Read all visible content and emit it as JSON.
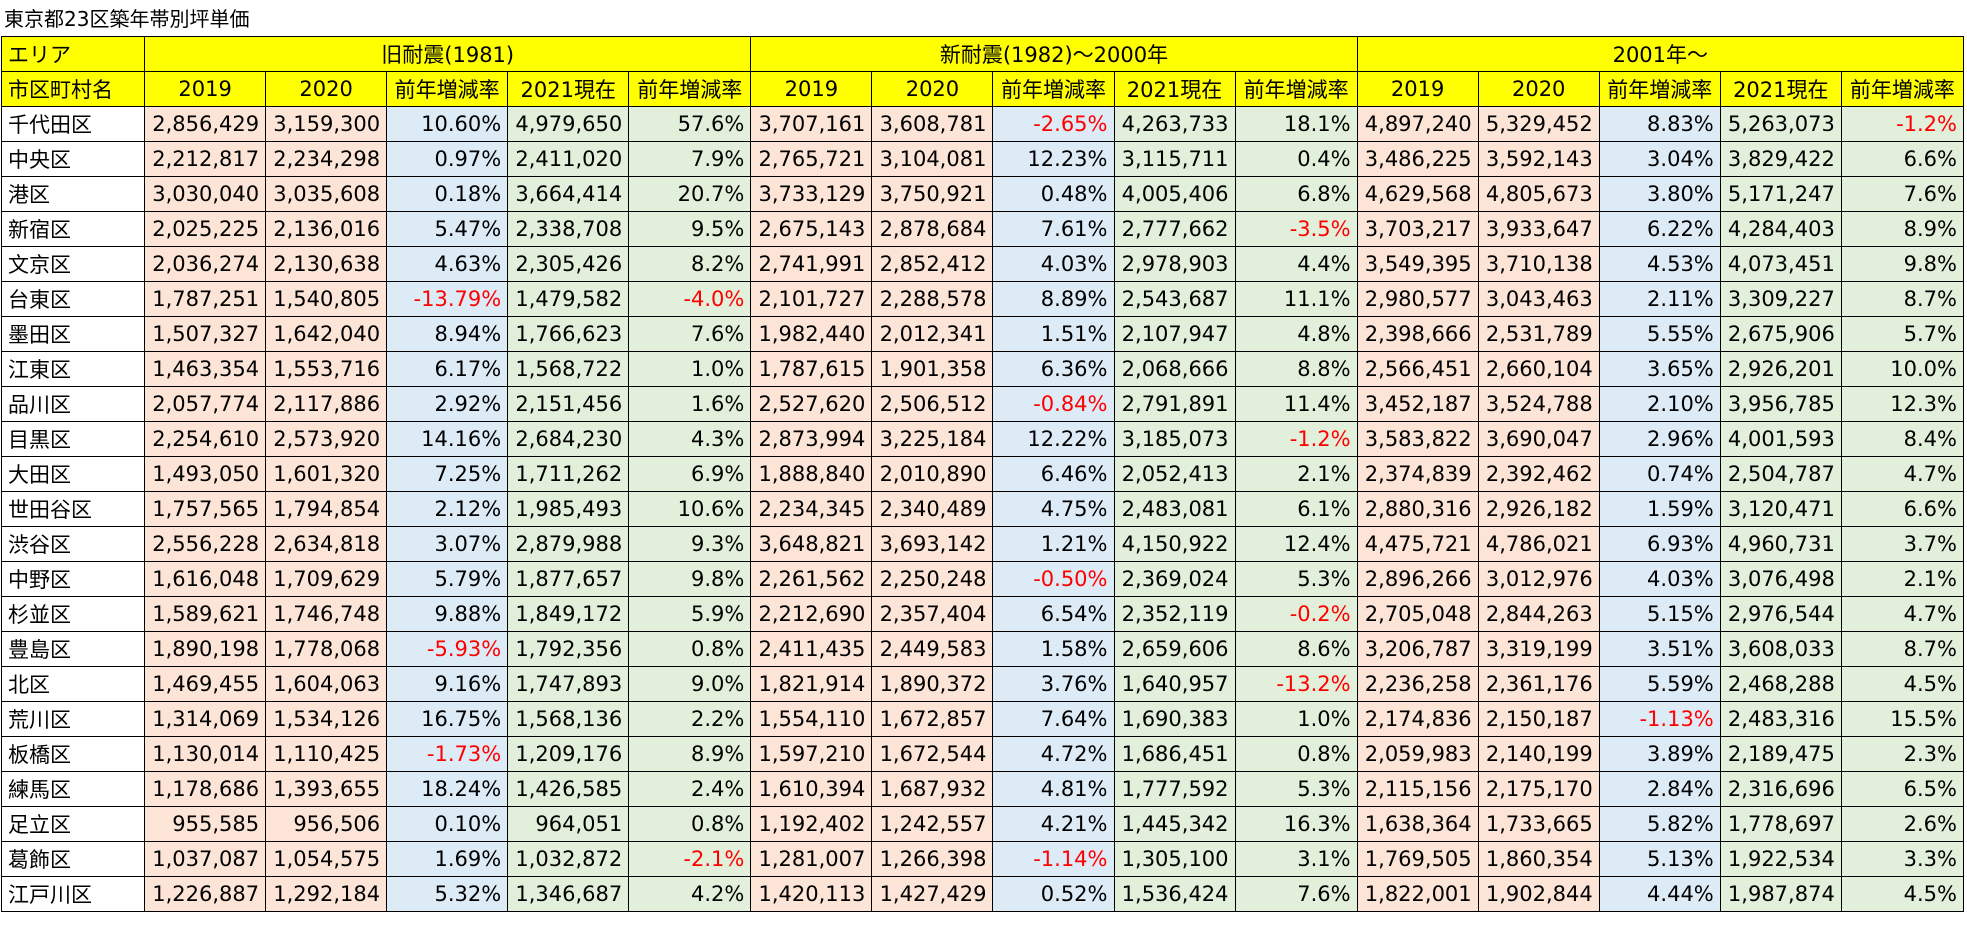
{
  "title": "東京都23区築年帯別坪単価",
  "header": {
    "area_label": "エリア",
    "groups": [
      "旧耐震(1981)",
      "新耐震(1982)～2000年",
      "2001年～"
    ],
    "ward_label": "市区町村名",
    "columns": [
      "2019",
      "2020",
      "前年増減率",
      "2021現在",
      "前年増減率"
    ]
  },
  "rows": [
    {
      "ward": "千代田区",
      "cells": [
        "2,856,429",
        "3,159,300",
        "10.60%",
        "4,979,650",
        "57.6%",
        "3,707,161",
        "3,608,781",
        "-2.65%",
        "4,263,733",
        "18.1%",
        "4,897,240",
        "5,329,452",
        "8.83%",
        "5,263,073",
        "-1.2%"
      ]
    },
    {
      "ward": "中央区",
      "cells": [
        "2,212,817",
        "2,234,298",
        "0.97%",
        "2,411,020",
        "7.9%",
        "2,765,721",
        "3,104,081",
        "12.23%",
        "3,115,711",
        "0.4%",
        "3,486,225",
        "3,592,143",
        "3.04%",
        "3,829,422",
        "6.6%"
      ]
    },
    {
      "ward": "港区",
      "cells": [
        "3,030,040",
        "3,035,608",
        "0.18%",
        "3,664,414",
        "20.7%",
        "3,733,129",
        "3,750,921",
        "0.48%",
        "4,005,406",
        "6.8%",
        "4,629,568",
        "4,805,673",
        "3.80%",
        "5,171,247",
        "7.6%"
      ]
    },
    {
      "ward": "新宿区",
      "cells": [
        "2,025,225",
        "2,136,016",
        "5.47%",
        "2,338,708",
        "9.5%",
        "2,675,143",
        "2,878,684",
        "7.61%",
        "2,777,662",
        "-3.5%",
        "3,703,217",
        "3,933,647",
        "6.22%",
        "4,284,403",
        "8.9%"
      ]
    },
    {
      "ward": "文京区",
      "cells": [
        "2,036,274",
        "2,130,638",
        "4.63%",
        "2,305,426",
        "8.2%",
        "2,741,991",
        "2,852,412",
        "4.03%",
        "2,978,903",
        "4.4%",
        "3,549,395",
        "3,710,138",
        "4.53%",
        "4,073,451",
        "9.8%"
      ]
    },
    {
      "ward": "台東区",
      "cells": [
        "1,787,251",
        "1,540,805",
        "-13.79%",
        "1,479,582",
        "-4.0%",
        "2,101,727",
        "2,288,578",
        "8.89%",
        "2,543,687",
        "11.1%",
        "2,980,577",
        "3,043,463",
        "2.11%",
        "3,309,227",
        "8.7%"
      ]
    },
    {
      "ward": "墨田区",
      "cells": [
        "1,507,327",
        "1,642,040",
        "8.94%",
        "1,766,623",
        "7.6%",
        "1,982,440",
        "2,012,341",
        "1.51%",
        "2,107,947",
        "4.8%",
        "2,398,666",
        "2,531,789",
        "5.55%",
        "2,675,906",
        "5.7%"
      ]
    },
    {
      "ward": "江東区",
      "cells": [
        "1,463,354",
        "1,553,716",
        "6.17%",
        "1,568,722",
        "1.0%",
        "1,787,615",
        "1,901,358",
        "6.36%",
        "2,068,666",
        "8.8%",
        "2,566,451",
        "2,660,104",
        "3.65%",
        "2,926,201",
        "10.0%"
      ]
    },
    {
      "ward": "品川区",
      "cells": [
        "2,057,774",
        "2,117,886",
        "2.92%",
        "2,151,456",
        "1.6%",
        "2,527,620",
        "2,506,512",
        "-0.84%",
        "2,791,891",
        "11.4%",
        "3,452,187",
        "3,524,788",
        "2.10%",
        "3,956,785",
        "12.3%"
      ]
    },
    {
      "ward": "目黒区",
      "cells": [
        "2,254,610",
        "2,573,920",
        "14.16%",
        "2,684,230",
        "4.3%",
        "2,873,994",
        "3,225,184",
        "12.22%",
        "3,185,073",
        "-1.2%",
        "3,583,822",
        "3,690,047",
        "2.96%",
        "4,001,593",
        "8.4%"
      ]
    },
    {
      "ward": "大田区",
      "cells": [
        "1,493,050",
        "1,601,320",
        "7.25%",
        "1,711,262",
        "6.9%",
        "1,888,840",
        "2,010,890",
        "6.46%",
        "2,052,413",
        "2.1%",
        "2,374,839",
        "2,392,462",
        "0.74%",
        "2,504,787",
        "4.7%"
      ]
    },
    {
      "ward": "世田谷区",
      "cells": [
        "1,757,565",
        "1,794,854",
        "2.12%",
        "1,985,493",
        "10.6%",
        "2,234,345",
        "2,340,489",
        "4.75%",
        "2,483,081",
        "6.1%",
        "2,880,316",
        "2,926,182",
        "1.59%",
        "3,120,471",
        "6.6%"
      ]
    },
    {
      "ward": "渋谷区",
      "cells": [
        "2,556,228",
        "2,634,818",
        "3.07%",
        "2,879,988",
        "9.3%",
        "3,648,821",
        "3,693,142",
        "1.21%",
        "4,150,922",
        "12.4%",
        "4,475,721",
        "4,786,021",
        "6.93%",
        "4,960,731",
        "3.7%"
      ]
    },
    {
      "ward": "中野区",
      "cells": [
        "1,616,048",
        "1,709,629",
        "5.79%",
        "1,877,657",
        "9.8%",
        "2,261,562",
        "2,250,248",
        "-0.50%",
        "2,369,024",
        "5.3%",
        "2,896,266",
        "3,012,976",
        "4.03%",
        "3,076,498",
        "2.1%"
      ]
    },
    {
      "ward": "杉並区",
      "cells": [
        "1,589,621",
        "1,746,748",
        "9.88%",
        "1,849,172",
        "5.9%",
        "2,212,690",
        "2,357,404",
        "6.54%",
        "2,352,119",
        "-0.2%",
        "2,705,048",
        "2,844,263",
        "5.15%",
        "2,976,544",
        "4.7%"
      ]
    },
    {
      "ward": "豊島区",
      "cells": [
        "1,890,198",
        "1,778,068",
        "-5.93%",
        "1,792,356",
        "0.8%",
        "2,411,435",
        "2,449,583",
        "1.58%",
        "2,659,606",
        "8.6%",
        "3,206,787",
        "3,319,199",
        "3.51%",
        "3,608,033",
        "8.7%"
      ]
    },
    {
      "ward": "北区",
      "cells": [
        "1,469,455",
        "1,604,063",
        "9.16%",
        "1,747,893",
        "9.0%",
        "1,821,914",
        "1,890,372",
        "3.76%",
        "1,640,957",
        "-13.2%",
        "2,236,258",
        "2,361,176",
        "5.59%",
        "2,468,288",
        "4.5%"
      ]
    },
    {
      "ward": "荒川区",
      "cells": [
        "1,314,069",
        "1,534,126",
        "16.75%",
        "1,568,136",
        "2.2%",
        "1,554,110",
        "1,672,857",
        "7.64%",
        "1,690,383",
        "1.0%",
        "2,174,836",
        "2,150,187",
        "-1.13%",
        "2,483,316",
        "15.5%"
      ]
    },
    {
      "ward": "板橋区",
      "cells": [
        "1,130,014",
        "1,110,425",
        "-1.73%",
        "1,209,176",
        "8.9%",
        "1,597,210",
        "1,672,544",
        "4.72%",
        "1,686,451",
        "0.8%",
        "2,059,983",
        "2,140,199",
        "3.89%",
        "2,189,475",
        "2.3%"
      ]
    },
    {
      "ward": "練馬区",
      "cells": [
        "1,178,686",
        "1,393,655",
        "18.24%",
        "1,426,585",
        "2.4%",
        "1,610,394",
        "1,687,932",
        "4.81%",
        "1,777,592",
        "5.3%",
        "2,115,156",
        "2,175,170",
        "2.84%",
        "2,316,696",
        "6.5%"
      ]
    },
    {
      "ward": "足立区",
      "cells": [
        "955,585",
        "956,506",
        "0.10%",
        "964,051",
        "0.8%",
        "1,192,402",
        "1,242,557",
        "4.21%",
        "1,445,342",
        "16.3%",
        "1,638,364",
        "1,733,665",
        "5.82%",
        "1,778,697",
        "2.6%"
      ]
    },
    {
      "ward": "葛飾区",
      "cells": [
        "1,037,087",
        "1,054,575",
        "1.69%",
        "1,032,872",
        "-2.1%",
        "1,281,007",
        "1,266,398",
        "-1.14%",
        "1,305,100",
        "3.1%",
        "1,769,505",
        "1,860,354",
        "5.13%",
        "1,922,534",
        "3.3%"
      ]
    },
    {
      "ward": "江戸川区",
      "cells": [
        "1,226,887",
        "1,292,184",
        "5.32%",
        "1,346,687",
        "4.2%",
        "1,420,113",
        "1,427,429",
        "0.52%",
        "1,536,424",
        "7.6%",
        "1,822,001",
        "1,902,844",
        "4.44%",
        "1,987,874",
        "4.5%"
      ]
    }
  ],
  "colors": {
    "header_yellow": "#ffff00",
    "price_peach": "#fce4d6",
    "rate_blue": "#ddebf7",
    "current_green": "#e2efda",
    "negative_red": "#ff0000"
  }
}
